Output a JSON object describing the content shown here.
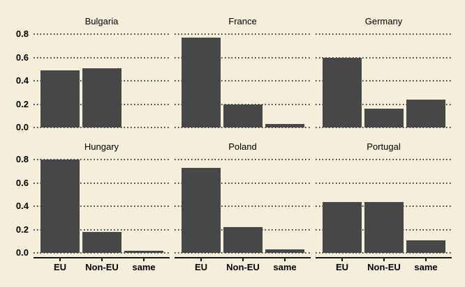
{
  "chart_data": {
    "type": "bar",
    "title": "",
    "categories": [
      "EU",
      "Non-EU",
      "same"
    ],
    "facets": [
      {
        "title": "Bulgaria",
        "values": [
          0.49,
          0.51,
          0.0
        ]
      },
      {
        "title": "France",
        "values": [
          0.77,
          0.2,
          0.03
        ]
      },
      {
        "title": "Germany",
        "values": [
          0.6,
          0.16,
          0.24
        ]
      },
      {
        "title": "Hungary",
        "values": [
          0.8,
          0.18,
          0.02
        ]
      },
      {
        "title": "Poland",
        "values": [
          0.73,
          0.22,
          0.03
        ]
      },
      {
        "title": "Portugal",
        "values": [
          0.44,
          0.44,
          0.11
        ]
      }
    ],
    "y_ticks": [
      "0.0",
      "0.2",
      "0.4",
      "0.6",
      "0.8"
    ],
    "y_tick_values": [
      0.0,
      0.2,
      0.4,
      0.6,
      0.8
    ],
    "ylim": [
      0,
      0.84
    ],
    "xlabel": "",
    "ylabel": "",
    "grid": "horizontal-dotted",
    "legend": "none",
    "layout": "2 rows x 3 columns; y-axis labels on left column only; x-axis line, ticks and category labels on bottom row only",
    "colors": {
      "background": "#f4eedb",
      "bar": "#474747",
      "grid_dots": "#333333",
      "axis_line": "#111111",
      "text": "#000000"
    }
  }
}
